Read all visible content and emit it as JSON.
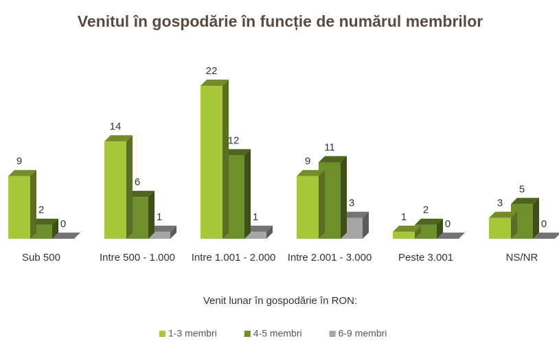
{
  "chart_data": {
    "type": "bar3d",
    "title": "Venitul în gospodărie în funcție de numărul membrilor",
    "x_label": "Venit lunar în gospodărie în RON:",
    "categories": [
      "Sub 500",
      "Intre 500 - 1.000",
      "Intre 1.001 - 2.000",
      "Intre 2.001 - 3.000",
      "Peste 3.001",
      "NS/NR"
    ],
    "series": [
      {
        "name": "1-3 membri",
        "color": "#a8c83c",
        "values": [
          9,
          14,
          22,
          9,
          1,
          3
        ]
      },
      {
        "name": "4-5 membri",
        "color": "#6f8f2c",
        "values": [
          2,
          6,
          12,
          11,
          2,
          5
        ]
      },
      {
        "name": "6-9 membri",
        "color": "#a6a6a6",
        "values": [
          0,
          1,
          1,
          3,
          0,
          0
        ]
      }
    ],
    "legend": "bottom"
  }
}
